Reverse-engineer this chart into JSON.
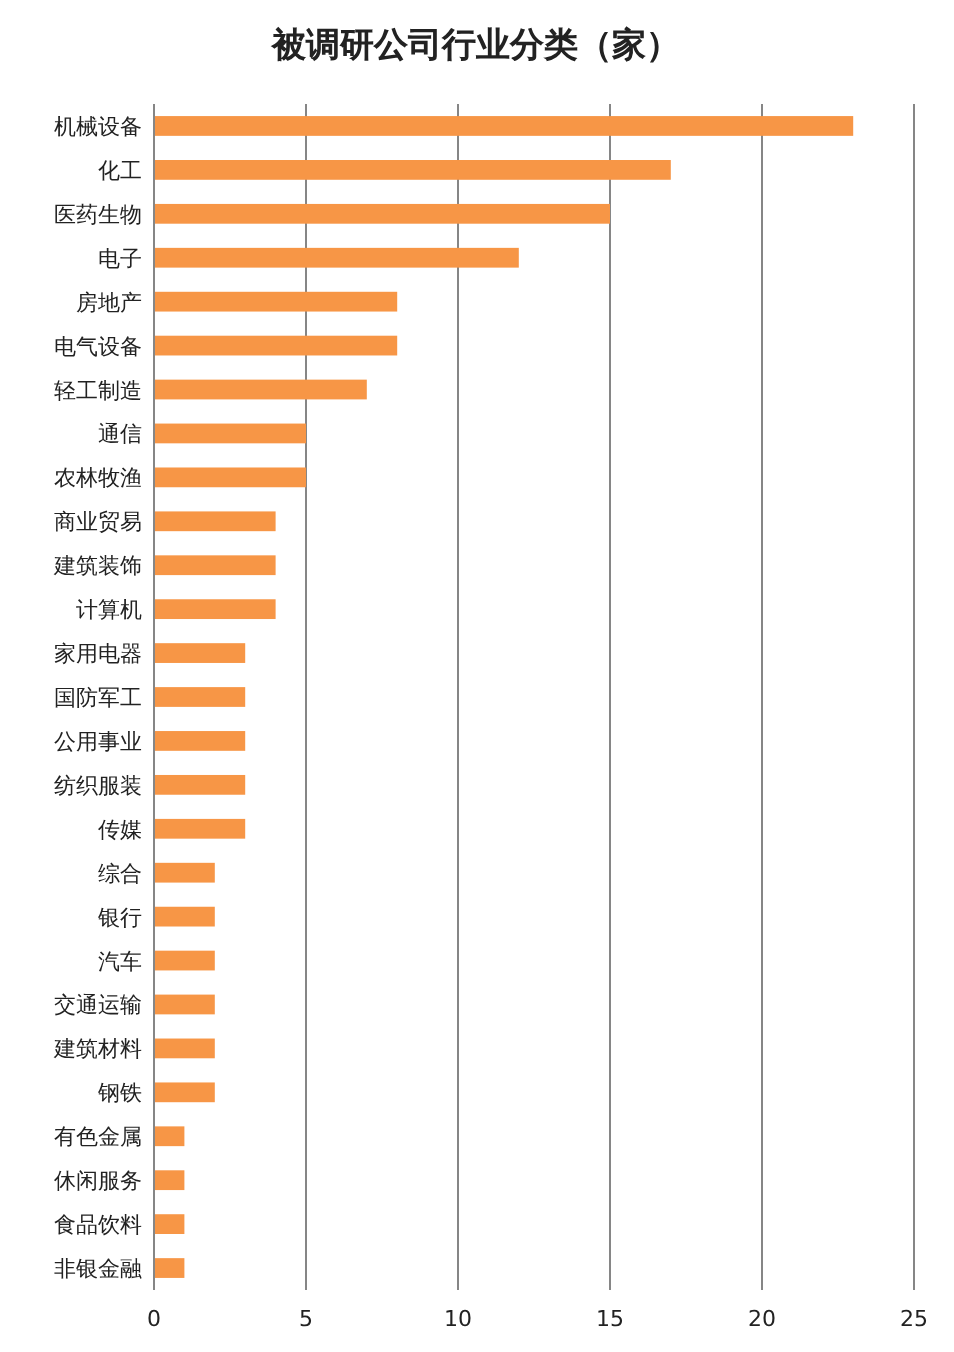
{
  "chart_data": {
    "type": "bar",
    "orientation": "horizontal",
    "title": "被调研公司行业分类（家）",
    "categories": [
      "机械设备",
      "化工",
      "医药生物",
      "电子",
      "房地产",
      "电气设备",
      "轻工制造",
      "通信",
      "农林牧渔",
      "商业贸易",
      "建筑装饰",
      "计算机",
      "家用电器",
      "国防军工",
      "公用事业",
      "纺织服装",
      "传媒",
      "综合",
      "银行",
      "汽车",
      "交通运输",
      "建筑材料",
      "钢铁",
      "有色金属",
      "休闲服务",
      "食品饮料",
      "非银金融"
    ],
    "values": [
      23,
      17,
      15,
      12,
      8,
      8,
      7,
      5,
      5,
      4,
      4,
      4,
      3,
      3,
      3,
      3,
      3,
      2,
      2,
      2,
      2,
      2,
      2,
      1,
      1,
      1,
      1
    ],
    "color": "#f79646",
    "xlim": [
      0,
      25
    ],
    "xticks": [
      0,
      5,
      10,
      15,
      20,
      25
    ],
    "grid": "x"
  }
}
